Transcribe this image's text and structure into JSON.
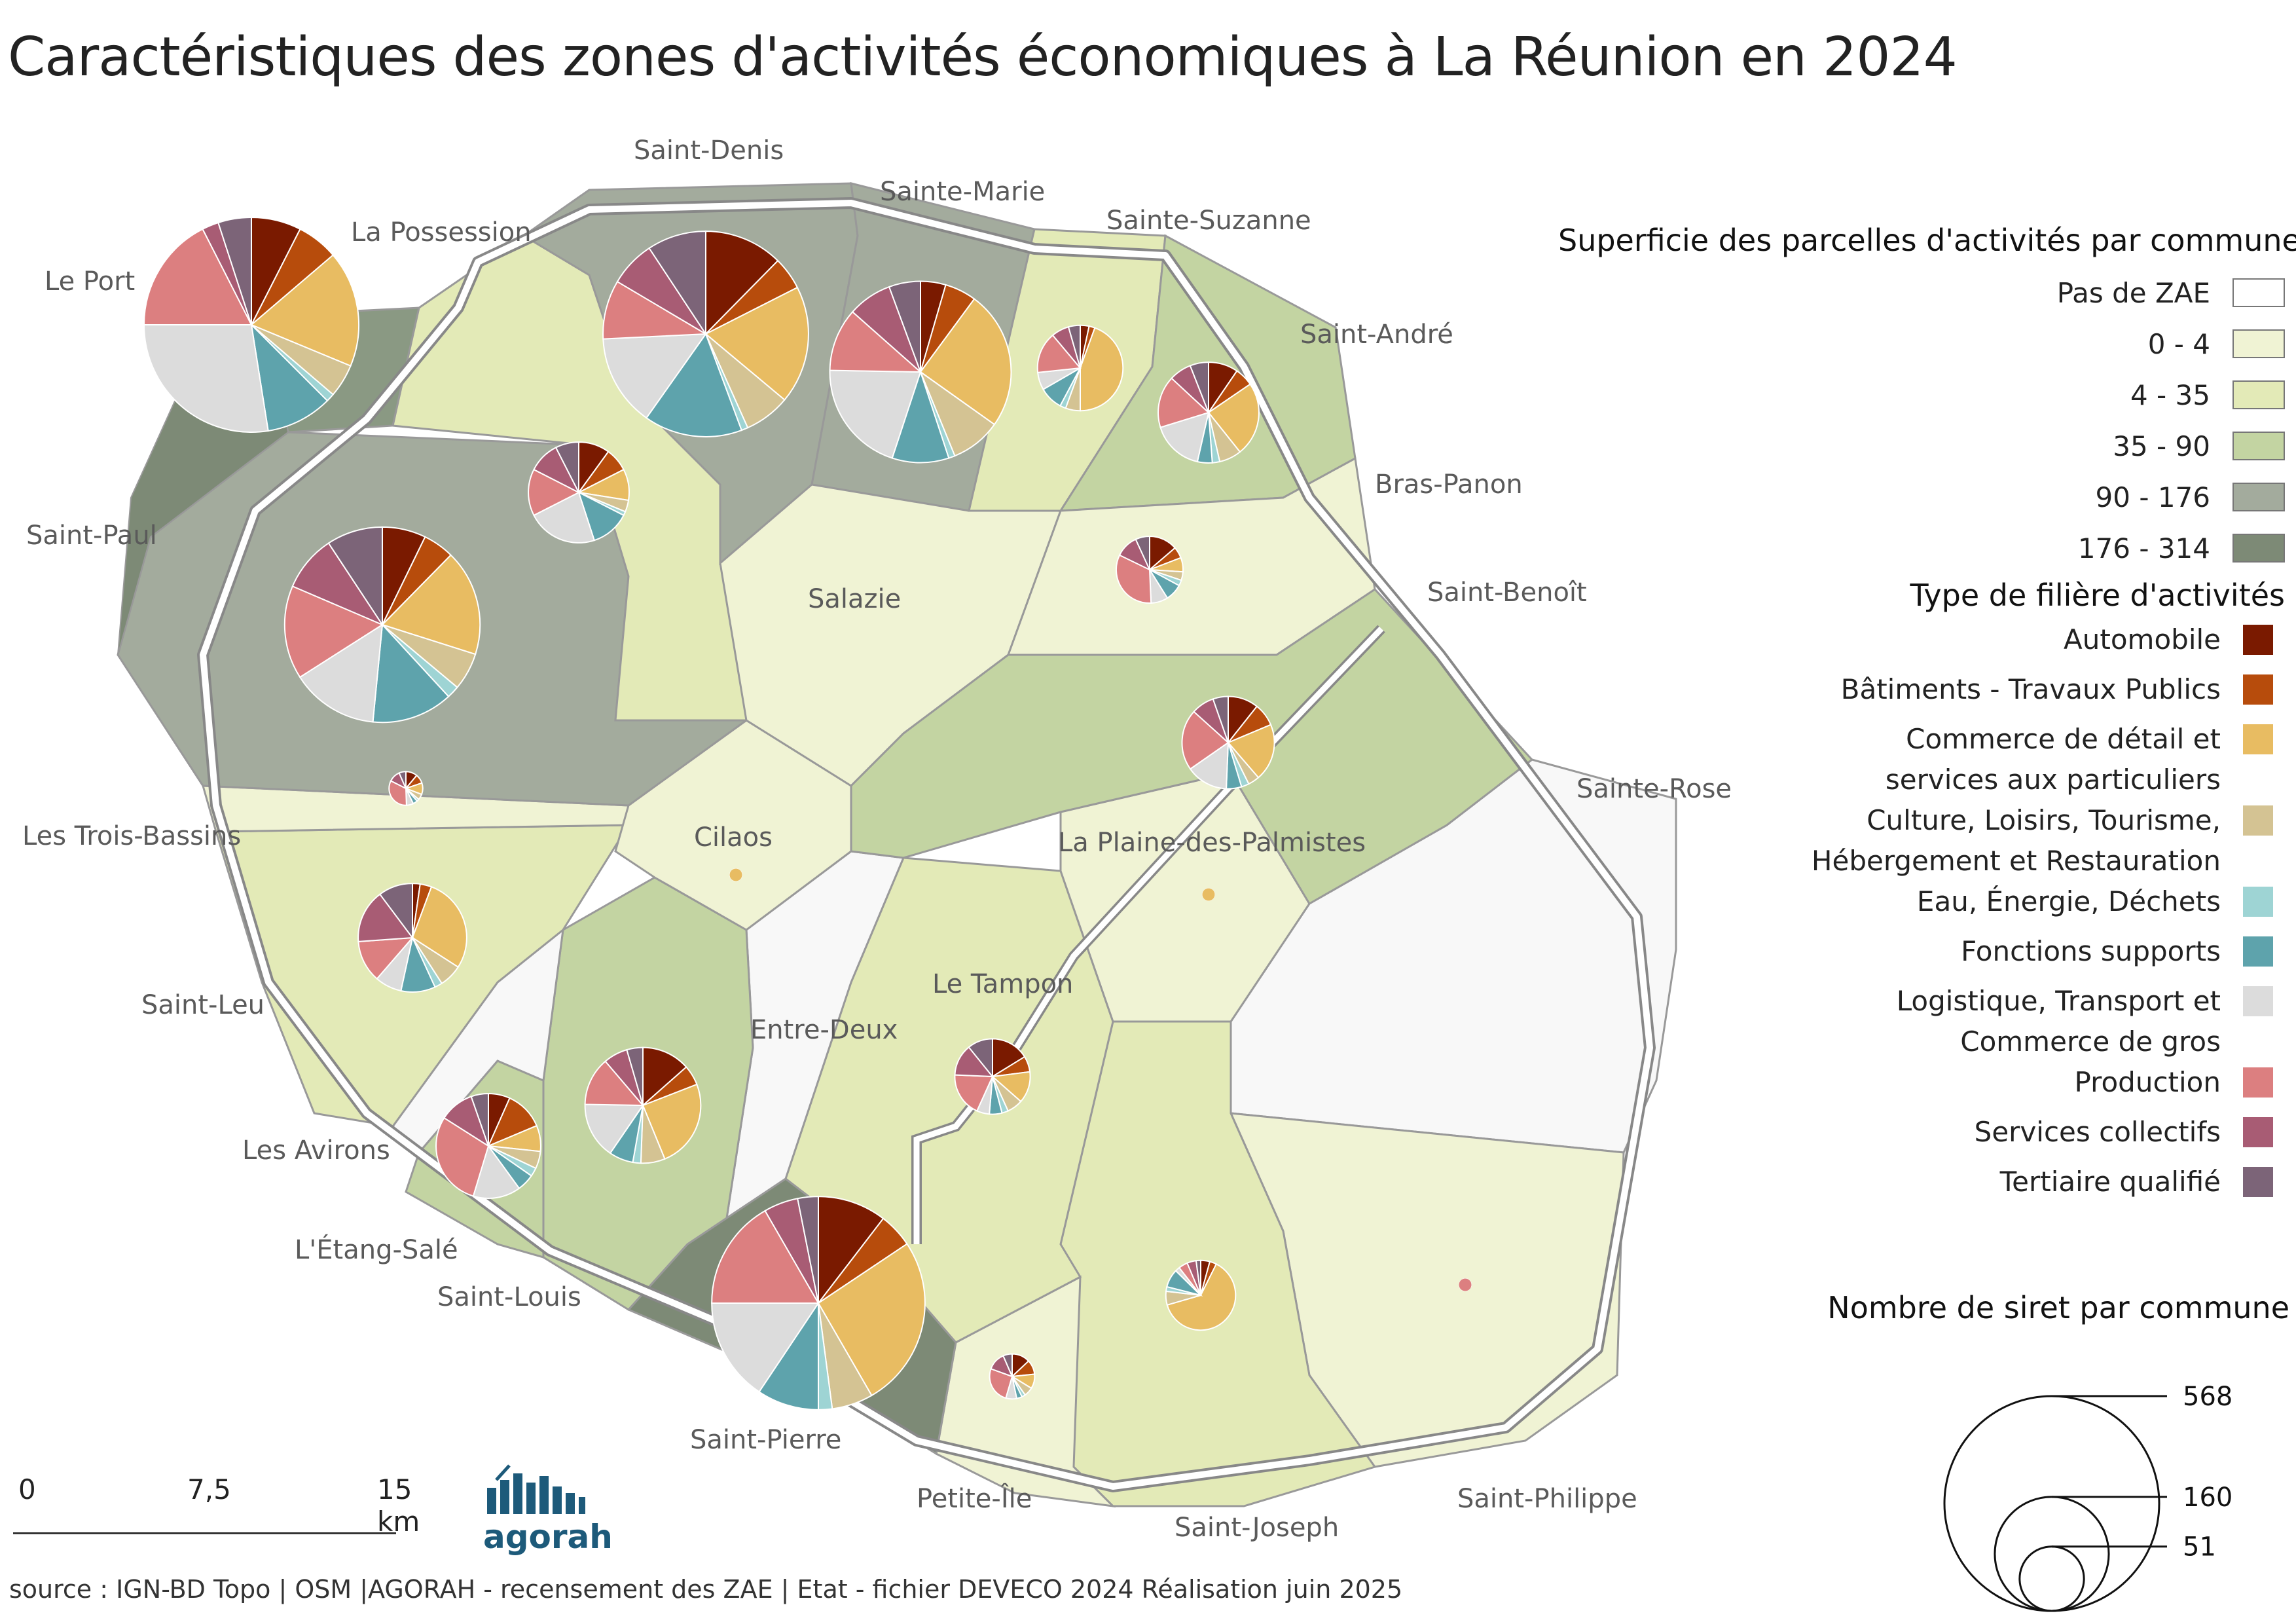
{
  "title": "Caractéristiques des zones d'activités économiques à La Réunion en 2024",
  "communes": [
    {
      "name": "Saint-Denis",
      "fill": "#a3ab9d"
    },
    {
      "name": "Sainte-Marie",
      "fill": "#a3ab9d"
    },
    {
      "name": "Sainte-Suzanne",
      "fill": "#e3eab7"
    },
    {
      "name": "Saint-André",
      "fill": "#c3d4a2"
    },
    {
      "name": "Bras-Panon",
      "fill": "#f0f3d4"
    },
    {
      "name": "Saint-Benoît",
      "fill": "#c3d4a2"
    },
    {
      "name": "Sainte-Rose",
      "fill": "#f8f8f8"
    },
    {
      "name": "La Possession",
      "fill": "#e3eab7"
    },
    {
      "name": "Le Port",
      "fill": "#8a9983"
    },
    {
      "name": "Saint-Paul",
      "fill": "#a3ab9d"
    },
    {
      "name": "Salazie",
      "fill": "#f0f3d4"
    },
    {
      "name": "Les Trois-Bassins",
      "fill": "#f0f3d4"
    },
    {
      "name": "Cilaos",
      "fill": "#f0f3d4"
    },
    {
      "name": "La Plaine-des-Palmistes",
      "fill": "#f0f3d4"
    },
    {
      "name": "Saint-Leu",
      "fill": "#e3eab7"
    },
    {
      "name": "Entre-Deux",
      "fill": "#f8f8f8"
    },
    {
      "name": "Le Tampon",
      "fill": "#e3eab7"
    },
    {
      "name": "Les Avirons",
      "fill": "#c3d4a2"
    },
    {
      "name": "L'Étang-Salé",
      "fill": "#c3d4a2"
    },
    {
      "name": "Saint-Louis",
      "fill": "#c3d4a2"
    },
    {
      "name": "Saint-Pierre",
      "fill": "#7d8a76"
    },
    {
      "name": "Petite-Île",
      "fill": "#f0f3d4"
    },
    {
      "name": "Saint-Joseph",
      "fill": "#e3eab7"
    },
    {
      "name": "Saint-Philippe",
      "fill": "#f0f3d4"
    }
  ],
  "legend_superficie": {
    "title": "Superficie des parcelles d'activités par commune",
    "classes": [
      {
        "label": "Pas de ZAE",
        "color": "#ffffff"
      },
      {
        "label": "0 - 4",
        "color": "#f0f3d4"
      },
      {
        "label": "4 - 35",
        "color": "#e3eab7"
      },
      {
        "label": "35 - 90",
        "color": "#c3d4a2"
      },
      {
        "label": "90 - 176",
        "color": "#a3ab9d"
      },
      {
        "label": "176 - 314",
        "color": "#7d8a76"
      }
    ]
  },
  "legend_filiere": {
    "title": "Type de filière d'activités",
    "items": [
      {
        "label": "Automobile",
        "color": "#7a1a00"
      },
      {
        "label": "Bâtiments - Travaux Publics",
        "color": "#b74c0c"
      },
      {
        "label": "Commerce de détail et services aux particuliers",
        "color": "#e8bc62"
      },
      {
        "label": "Culture, Loisirs, Tourisme, Hébergement et Restauration",
        "color": "#d4c393"
      },
      {
        "label": "Eau, Énergie, Déchets",
        "color": "#9ed4d4"
      },
      {
        "label": "Fonctions supports",
        "color": "#5ea3ac"
      },
      {
        "label": "Logistique, Transport et Commerce de gros",
        "color": "#dcdcdc"
      },
      {
        "label": "Production",
        "color": "#dc7f80"
      },
      {
        "label": "Services collectifs",
        "color": "#a85c74"
      },
      {
        "label": "Tertiaire qualifié",
        "color": "#7c6478"
      }
    ],
    "labels_wrapped": [
      [
        "Automobile"
      ],
      [
        "Bâtiments - Travaux Publics"
      ],
      [
        "Commerce de détail et",
        "services aux particuliers"
      ],
      [
        "Culture, Loisirs, Tourisme,",
        "Hébergement et Restauration"
      ],
      [
        "Eau, Énergie, Déchets"
      ],
      [
        "Fonctions supports"
      ],
      [
        "Logistique, Transport et",
        "Commerce de gros"
      ],
      [
        "Production"
      ],
      [
        "Services collectifs"
      ],
      [
        "Tertiaire qualifié"
      ]
    ]
  },
  "legend_size": {
    "title": "Nombre de siret par commune",
    "values": [
      568,
      160,
      51
    ]
  },
  "pies": [
    {
      "commune": "Le Port",
      "siret": 568,
      "shares": [
        6,
        5,
        14,
        4,
        1,
        8,
        22,
        14,
        2,
        4
      ]
    },
    {
      "commune": "Saint-Denis",
      "siret": 520,
      "shares": [
        12,
        5,
        18,
        7,
        1,
        15,
        14,
        9,
        7,
        9
      ]
    },
    {
      "commune": "Sainte-Marie",
      "siret": 405,
      "shares": [
        4,
        5,
        22,
        8,
        1,
        9,
        18,
        10,
        7,
        5
      ]
    },
    {
      "commune": "Sainte-Suzanne",
      "siret": 90,
      "shares": [
        3,
        2,
        40,
        5,
        2,
        8,
        6,
        14,
        6,
        4
      ]
    },
    {
      "commune": "Saint-André",
      "siret": 125,
      "shares": [
        8,
        5,
        20,
        6,
        2,
        4,
        14,
        14,
        6,
        5
      ]
    },
    {
      "commune": "La Possession",
      "siret": 125,
      "shares": [
        8,
        6,
        8,
        3,
        1,
        10,
        18,
        12,
        8,
        6
      ]
    },
    {
      "commune": "Saint-Paul",
      "siret": 470,
      "shares": [
        7,
        5,
        17,
        6,
        2,
        13,
        14,
        15,
        9,
        9
      ]
    },
    {
      "commune": "Saint-Benoît",
      "siret": 55,
      "shares": [
        10,
        4,
        5,
        3,
        2,
        6,
        6,
        24,
        8,
        5
      ]
    },
    {
      "commune": "La Plaine-des-Palmistes",
      "siret": 105,
      "shares": [
        8,
        6,
        15,
        3,
        2,
        4,
        11,
        16,
        6,
        4
      ]
    },
    {
      "commune": "Les Trois-Bassins",
      "siret": 14,
      "shares": [
        10,
        8,
        10,
        5,
        2,
        4,
        6,
        30,
        10,
        6
      ]
    },
    {
      "commune": "Saint-Leu",
      "siret": 145,
      "shares": [
        2,
        3,
        25,
        6,
        2,
        9,
        7,
        11,
        14,
        9
      ]
    },
    {
      "commune": "Les Avirons",
      "siret": 135,
      "shares": [
        5,
        9,
        6,
        4,
        2,
        4,
        11,
        22,
        8,
        4
      ]
    },
    {
      "commune": "Saint-Louis",
      "siret": 165,
      "shares": [
        12,
        5,
        22,
        6,
        2,
        6,
        14,
        12,
        6,
        4
      ]
    },
    {
      "commune": "Le Tampon",
      "siret": 70,
      "shares": [
        12,
        5,
        10,
        5,
        2,
        4,
        4,
        14,
        10,
        8
      ]
    },
    {
      "commune": "Saint-Pierre",
      "siret": 560,
      "shares": [
        10,
        5,
        25,
        6,
        2,
        9,
        15,
        16,
        5,
        3
      ]
    },
    {
      "commune": "Petite-Île",
      "siret": 25,
      "shares": [
        10,
        8,
        8,
        5,
        2,
        3,
        6,
        20,
        10,
        5
      ]
    },
    {
      "commune": "Saint-Joseph",
      "siret": 60,
      "shares": [
        4,
        3,
        60,
        6,
        2,
        8,
        2,
        4,
        4,
        2
      ]
    },
    {
      "commune": "Entre-Deux",
      "siret": 2,
      "shares": [
        0,
        0,
        100,
        0,
        0,
        0,
        0,
        0,
        0,
        0
      ]
    },
    {
      "commune": "Cilaos",
      "siret": 2,
      "shares": [
        0,
        0,
        100,
        0,
        0,
        0,
        0,
        0,
        0,
        0
      ]
    },
    {
      "commune": "Saint-Philippe",
      "siret": 2,
      "shares": [
        0,
        0,
        0,
        0,
        0,
        0,
        0,
        100,
        0,
        0
      ]
    }
  ],
  "scale_bar": {
    "labels": [
      "0",
      "7,5",
      "15 km"
    ]
  },
  "logo_text": "agorah",
  "source": "source : IGN-BD Topo | OSM |AGORAH - recensement des ZAE | Etat - fichier DEVECO 2024 Réalisation juin 2025"
}
